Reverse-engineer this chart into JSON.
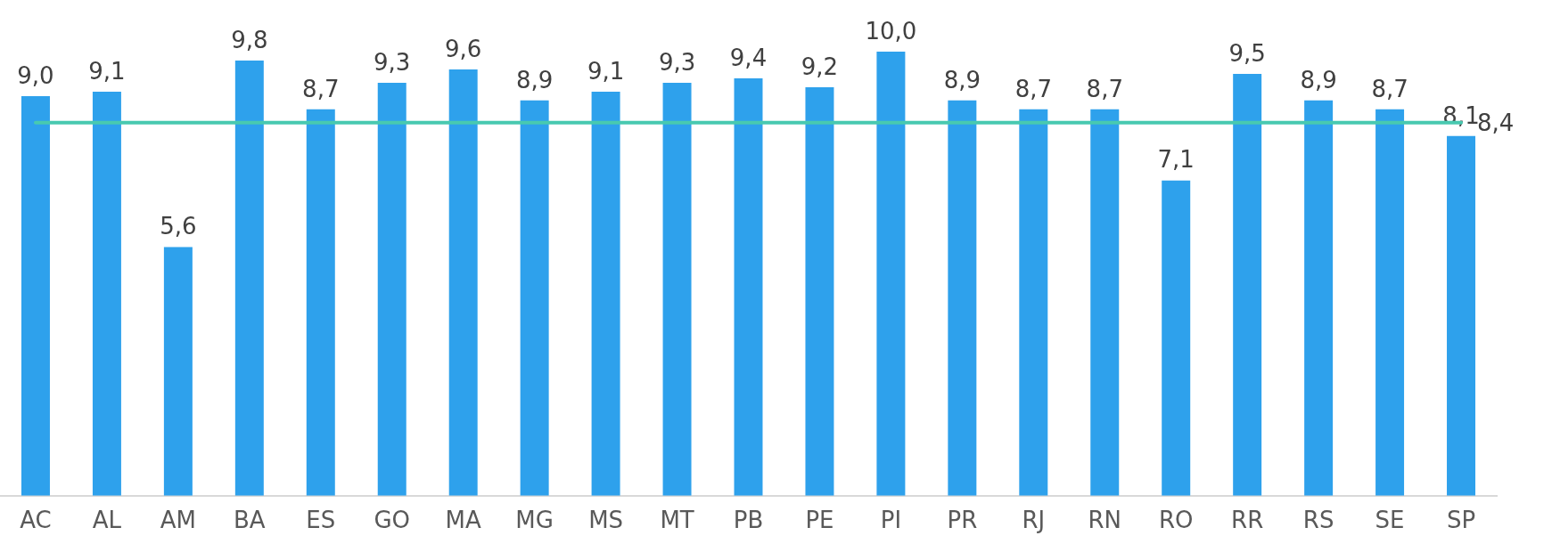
{
  "chart_data": {
    "type": "bar",
    "categories": [
      "AC",
      "AL",
      "AM",
      "BA",
      "ES",
      "GO",
      "MA",
      "MG",
      "MS",
      "MT",
      "PB",
      "PE",
      "PI",
      "PR",
      "RJ",
      "RN",
      "RO",
      "RR",
      "RS",
      "SE",
      "SP"
    ],
    "values": [
      9.0,
      9.1,
      5.6,
      9.8,
      8.7,
      9.3,
      9.6,
      8.9,
      9.1,
      9.3,
      9.4,
      9.2,
      10.0,
      8.9,
      8.7,
      8.7,
      7.1,
      9.5,
      8.9,
      8.7,
      8.1
    ],
    "value_labels": [
      "9,0",
      "9,1",
      "5,6",
      "9,8",
      "8,7",
      "9,3",
      "9,6",
      "8,9",
      "9,1",
      "9,3",
      "9,4",
      "9,2",
      "10,0",
      "8,9",
      "8,7",
      "8,7",
      "7,1",
      "9,5",
      "8,9",
      "8,7",
      "8,1"
    ],
    "color": "#2ea1ec",
    "ylim": [
      0,
      10
    ],
    "tick_labels": "x",
    "grid": false,
    "legend": false,
    "ref_lines": [
      {
        "axis": "y",
        "value": 8.4,
        "label": "8,4",
        "color": "#48c9b0"
      }
    ]
  }
}
